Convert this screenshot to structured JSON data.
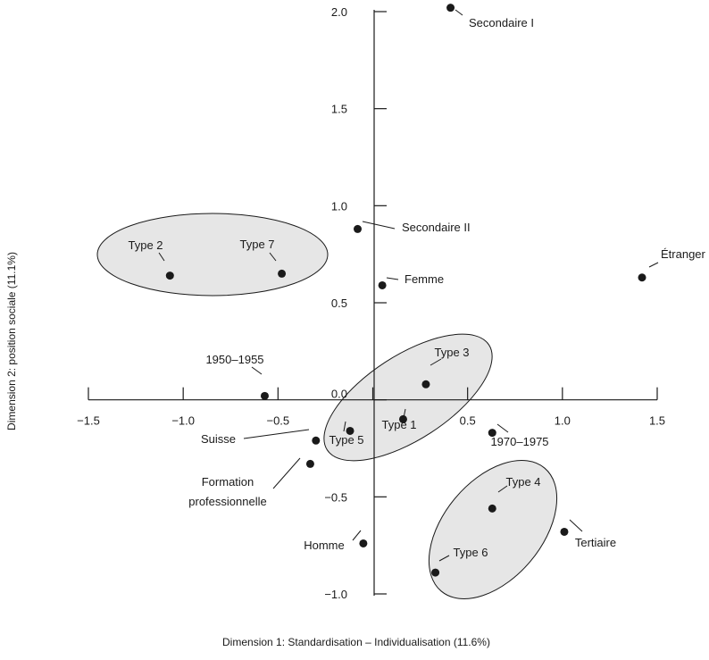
{
  "chart_data": {
    "type": "scatter",
    "xlabel": "Dimension 1: Standardisation – Individualisation (11.6%)",
    "ylabel": "Dimension 2: position sociale (11.1%)",
    "xlim": [
      -1.5,
      1.5
    ],
    "ylim": [
      -1.0,
      2.0
    ],
    "x_ticks": [
      "−1.5",
      "−1.0",
      "−0.5",
      "0.0",
      "0.5",
      "1.0",
      "1.5"
    ],
    "y_ticks": [
      "−1.0",
      "−0.5",
      "0.0",
      "0.5",
      "1.0",
      "1.5",
      "2.0"
    ],
    "grid": false,
    "points": [
      {
        "label": "Secondaire I",
        "x": 0.41,
        "y": 2.02
      },
      {
        "label": "Secondaire II",
        "x": -0.08,
        "y": 0.88
      },
      {
        "label": "Femme",
        "x": 0.05,
        "y": 0.59
      },
      {
        "label": "Étranger",
        "x": 1.42,
        "y": 0.63
      },
      {
        "label": "Type 2",
        "x": -1.07,
        "y": 0.64
      },
      {
        "label": "Type 7",
        "x": -0.48,
        "y": 0.65
      },
      {
        "label": "1950–1955",
        "x": -0.57,
        "y": 0.02
      },
      {
        "label": "Type 3",
        "x": 0.28,
        "y": 0.08
      },
      {
        "label": "Type 1",
        "x": 0.16,
        "y": -0.1
      },
      {
        "label": "Type 5",
        "x": -0.12,
        "y": -0.16
      },
      {
        "label": "1970–1975",
        "x": 0.63,
        "y": -0.17
      },
      {
        "label": "Suisse",
        "x": -0.3,
        "y": -0.21
      },
      {
        "label": "Formation professionnelle",
        "x": -0.33,
        "y": -0.33
      },
      {
        "label": "Type 4",
        "x": 0.63,
        "y": -0.56
      },
      {
        "label": "Tertiaire",
        "x": 1.01,
        "y": -0.68
      },
      {
        "label": "Homme",
        "x": -0.05,
        "y": -0.74
      },
      {
        "label": "Type 6",
        "x": 0.33,
        "y": -0.89
      }
    ],
    "clusters": [
      {
        "members": [
          "Type 2",
          "Type 7"
        ]
      },
      {
        "members": [
          "Type 3",
          "Type 1",
          "Type 5"
        ]
      },
      {
        "members": [
          "Type 4",
          "Type 6"
        ]
      }
    ]
  }
}
